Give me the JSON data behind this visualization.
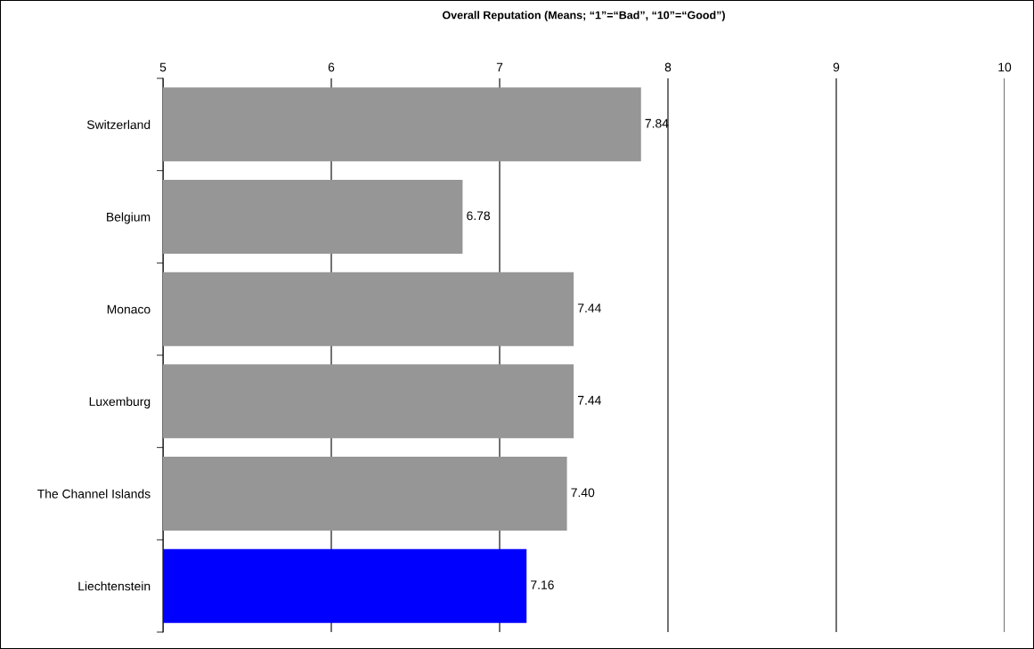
{
  "chart_data": {
    "type": "bar",
    "orientation": "horizontal",
    "title": "Overall Reputation (Means; “1”=“Bad”, “10”=“Good”)",
    "categories": [
      "Switzerland",
      "Belgium",
      "Monaco",
      "Luxemburg",
      "The Channel Islands",
      "Liechtenstein"
    ],
    "values": [
      7.84,
      6.78,
      7.44,
      7.44,
      7.4,
      7.16
    ],
    "value_labels": [
      "7.84",
      "6.78",
      "7.44",
      "7.44",
      "7.40",
      "7.16"
    ],
    "colors": [
      "#969696",
      "#969696",
      "#969696",
      "#969696",
      "#969696",
      "#0000ff"
    ],
    "xlim": [
      5,
      10
    ],
    "xticks": [
      5,
      6,
      7,
      8,
      9,
      10
    ],
    "grid": "x",
    "legend": false
  }
}
